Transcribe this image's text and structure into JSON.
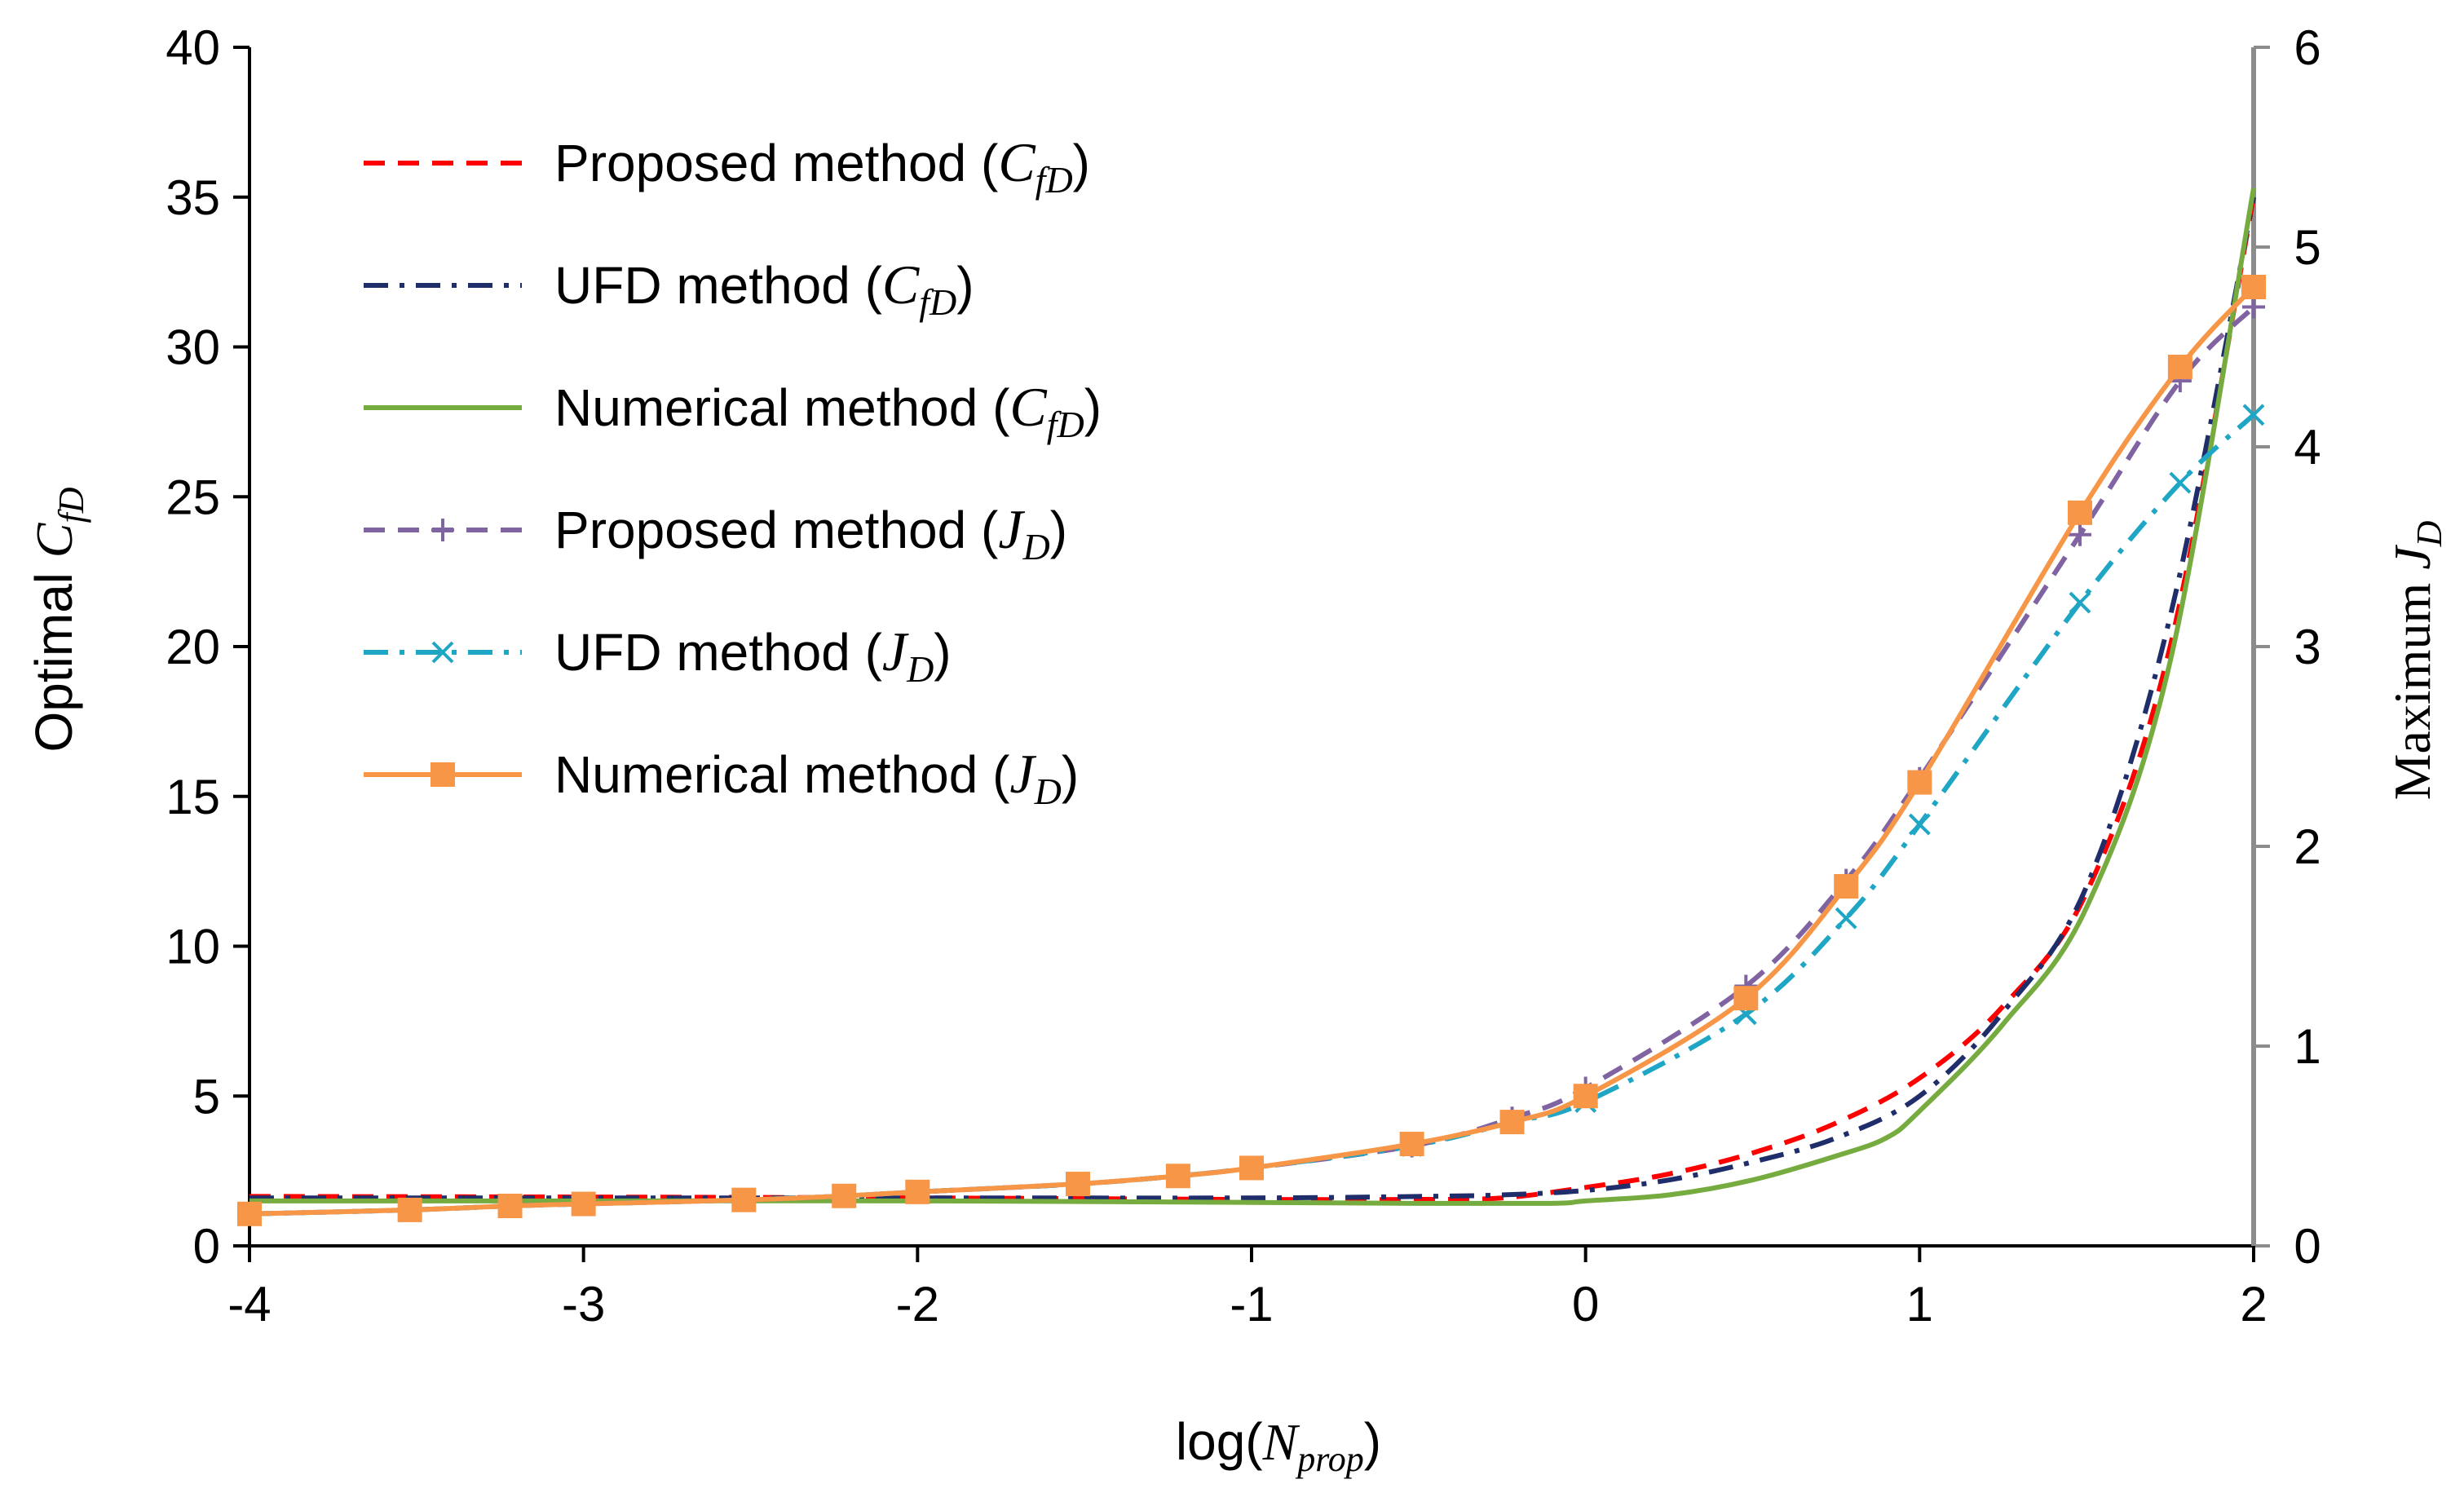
{
  "chart_data": {
    "type": "line",
    "title": "",
    "x_axis": {
      "label": "log(",
      "label_var": "N",
      "label_sub": "prop",
      "label_close": ")",
      "range": [
        -4,
        2
      ],
      "ticks": [
        "-4",
        "-3",
        "-2",
        "-1",
        "0",
        "1",
        "2"
      ]
    },
    "y_axis_left": {
      "label": "Optimal ",
      "label_var": "C",
      "label_sub": "fD",
      "range": [
        0,
        40
      ],
      "ticks": [
        "0",
        "5",
        "10",
        "15",
        "20",
        "25",
        "30",
        "35",
        "40"
      ]
    },
    "y_axis_right": {
      "label": "Maximum ",
      "label_var": "J",
      "label_sub": "D",
      "range": [
        0,
        6
      ],
      "ticks": [
        "0",
        "1",
        "2",
        "3",
        "4",
        "5",
        "6"
      ]
    },
    "legend_position": "top-left",
    "series": [
      {
        "name": "Proposed method",
        "paren_var": "C",
        "paren_sub": "fD",
        "axis": "left",
        "color": "#ff0000",
        "style": "dash",
        "marker": "none",
        "x": [
          -4,
          -3,
          -2,
          -1,
          -0.5,
          -0.25,
          0,
          0.25,
          0.5,
          0.75,
          1,
          1.25,
          1.5,
          1.75,
          2
        ],
        "y": [
          1.65,
          1.63,
          1.6,
          1.55,
          1.55,
          1.6,
          1.95,
          2.4,
          3.1,
          4.1,
          5.6,
          8.0,
          11.8,
          20.0,
          35.0
        ]
      },
      {
        "name": "UFD method",
        "paren_var": "C",
        "paren_sub": "fD",
        "axis": "left",
        "color": "#1f2d6b",
        "style": "dashdot",
        "marker": "none",
        "x": [
          -4,
          -3,
          -2,
          -1,
          -0.5,
          -0.25,
          0,
          0.25,
          0.5,
          0.75,
          1,
          1.25,
          1.5,
          1.75,
          2
        ],
        "y": [
          1.6,
          1.6,
          1.6,
          1.6,
          1.65,
          1.7,
          1.85,
          2.2,
          2.8,
          3.6,
          5.0,
          7.8,
          12.0,
          21.0,
          35.0
        ]
      },
      {
        "name": "Numerical method",
        "paren_var": "C",
        "paren_sub": "fD",
        "axis": "left",
        "color": "#76ab3f",
        "style": "solid",
        "marker": "none",
        "x": [
          -4,
          -3,
          -2,
          -1,
          -0.5,
          -0.1,
          0,
          0.25,
          0.5,
          0.75,
          0.9,
          1,
          1.25,
          1.5,
          1.75,
          2
        ],
        "y": [
          1.5,
          1.5,
          1.5,
          1.45,
          1.42,
          1.42,
          1.5,
          1.7,
          2.2,
          3.0,
          3.6,
          4.5,
          7.4,
          11.3,
          19.5,
          35.3
        ]
      },
      {
        "name": "Proposed method",
        "paren_var": "J",
        "paren_sub": "D",
        "axis": "right",
        "color": "#8064a2",
        "style": "dash",
        "marker": "plus",
        "x": [
          -4,
          -3.52,
          -3.22,
          -3,
          -2.52,
          -2.22,
          -2,
          -1.52,
          -1.22,
          -1,
          -0.52,
          -0.22,
          0,
          0.48,
          0.78,
          1,
          1.48,
          1.78,
          2
        ],
        "y": [
          0.16,
          0.18,
          0.2,
          0.21,
          0.23,
          0.25,
          0.27,
          0.31,
          0.35,
          0.39,
          0.5,
          0.64,
          0.79,
          1.3,
          1.83,
          2.34,
          3.56,
          4.33,
          4.7
        ]
      },
      {
        "name": "UFD method",
        "paren_var": "J",
        "paren_sub": "D",
        "axis": "right",
        "color": "#1fa6c4",
        "style": "dashdot",
        "marker": "x",
        "x": [
          -4,
          -3.52,
          -3.22,
          -3,
          -2.52,
          -2.22,
          -2,
          -1.52,
          -1.22,
          -1,
          -0.52,
          -0.22,
          0,
          0.48,
          0.78,
          1,
          1.48,
          1.78,
          2
        ],
        "y": [
          0.16,
          0.18,
          0.2,
          0.21,
          0.23,
          0.25,
          0.27,
          0.31,
          0.35,
          0.39,
          0.5,
          0.62,
          0.72,
          1.16,
          1.64,
          2.11,
          3.22,
          3.82,
          4.16
        ]
      },
      {
        "name": "Numerical method",
        "paren_var": "J",
        "paren_sub": "D",
        "axis": "right",
        "color": "#f79646",
        "style": "solid",
        "marker": "square",
        "x": [
          -4,
          -3.52,
          -3.22,
          -3,
          -2.52,
          -2.22,
          -2,
          -1.52,
          -1.22,
          -1,
          -0.52,
          -0.22,
          0,
          0.48,
          0.78,
          1,
          1.48,
          1.78,
          2
        ],
        "y": [
          0.16,
          0.18,
          0.2,
          0.21,
          0.23,
          0.25,
          0.27,
          0.31,
          0.35,
          0.39,
          0.51,
          0.62,
          0.75,
          1.24,
          1.8,
          2.32,
          3.67,
          4.4,
          4.8
        ]
      }
    ]
  }
}
